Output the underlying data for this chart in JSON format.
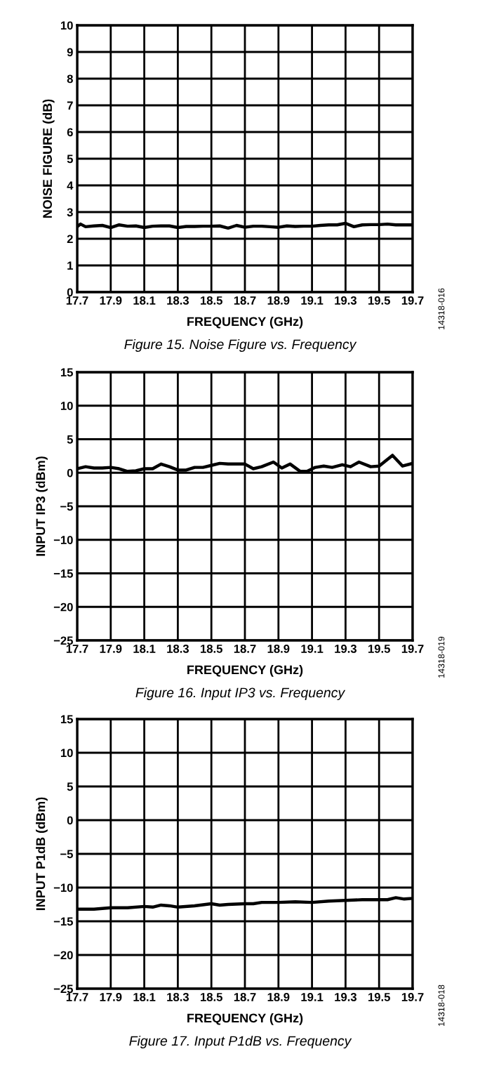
{
  "chart_data": [
    {
      "type": "line",
      "title": "Figure 15. Noise Figure vs. Frequency",
      "xlabel": "FREQUENCY (GHz)",
      "ylabel": "NOISE FIGURE (dB)",
      "annotations": [
        "14318-016"
      ],
      "xlim": [
        17.7,
        19.7
      ],
      "xticks": [
        17.7,
        17.9,
        18.1,
        18.3,
        18.5,
        18.7,
        18.9,
        19.1,
        19.3,
        19.5,
        19.7
      ],
      "ylim": [
        0,
        10
      ],
      "yticks": [
        0,
        1,
        2,
        3,
        4,
        5,
        6,
        7,
        8,
        9,
        10
      ],
      "grid": true,
      "series": [
        {
          "color": "#000000",
          "x": [
            17.7,
            17.72,
            17.75,
            17.8,
            17.85,
            17.9,
            17.95,
            18.0,
            18.05,
            18.1,
            18.15,
            18.2,
            18.25,
            18.3,
            18.35,
            18.4,
            18.45,
            18.5,
            18.55,
            18.6,
            18.65,
            18.7,
            18.75,
            18.8,
            18.85,
            18.9,
            18.95,
            19.0,
            19.05,
            19.1,
            19.15,
            19.2,
            19.25,
            19.3,
            19.35,
            19.4,
            19.45,
            19.5,
            19.55,
            19.6,
            19.65,
            19.7
          ],
          "values": [
            2.45,
            2.55,
            2.45,
            2.48,
            2.5,
            2.42,
            2.52,
            2.47,
            2.48,
            2.42,
            2.47,
            2.48,
            2.48,
            2.42,
            2.46,
            2.46,
            2.47,
            2.47,
            2.48,
            2.4,
            2.5,
            2.43,
            2.47,
            2.47,
            2.45,
            2.43,
            2.48,
            2.46,
            2.47,
            2.47,
            2.5,
            2.52,
            2.52,
            2.58,
            2.45,
            2.52,
            2.53,
            2.53,
            2.55,
            2.52,
            2.52,
            2.52
          ]
        }
      ]
    },
    {
      "type": "line",
      "title": "Figure 16. Input IP3 vs. Frequency",
      "xlabel": "FREQUENCY (GHz)",
      "ylabel": "INPUT IP3 (dBm)",
      "annotations": [
        "14318-019"
      ],
      "xlim": [
        17.7,
        19.7
      ],
      "xticks": [
        17.7,
        17.9,
        18.1,
        18.3,
        18.5,
        18.7,
        18.9,
        19.1,
        19.3,
        19.5,
        19.7
      ],
      "ylim": [
        -25,
        15
      ],
      "yticks": [
        {
          "value": -25,
          "label": "−25"
        },
        {
          "value": -20,
          "label": "−20"
        },
        {
          "value": -15,
          "label": "−15"
        },
        {
          "value": -10,
          "label": "−10"
        },
        {
          "value": -5,
          "label": "−5"
        },
        0,
        5,
        10,
        15
      ],
      "grid": true,
      "series": [
        {
          "color": "#000000",
          "x": [
            17.7,
            17.75,
            17.8,
            17.85,
            17.9,
            17.95,
            18.0,
            18.05,
            18.1,
            18.15,
            18.2,
            18.25,
            18.3,
            18.35,
            18.4,
            18.45,
            18.5,
            18.55,
            18.6,
            18.65,
            18.7,
            18.75,
            18.8,
            18.87,
            18.92,
            18.97,
            19.03,
            19.07,
            19.12,
            19.17,
            19.22,
            19.28,
            19.33,
            19.38,
            19.45,
            19.5,
            19.58,
            19.64,
            19.7
          ],
          "values": [
            0.6,
            0.9,
            0.7,
            0.7,
            0.8,
            0.6,
            0.2,
            0.3,
            0.6,
            0.6,
            1.3,
            0.9,
            0.4,
            0.4,
            0.8,
            0.8,
            1.1,
            1.4,
            1.3,
            1.3,
            1.3,
            0.6,
            0.9,
            1.6,
            0.7,
            1.3,
            0.2,
            0.2,
            0.8,
            1.0,
            0.8,
            1.2,
            0.9,
            1.6,
            0.9,
            1.0,
            2.6,
            1.0,
            1.4
          ]
        }
      ]
    },
    {
      "type": "line",
      "title": "Figure 17. Input P1dB vs. Frequency",
      "xlabel": "FREQUENCY (GHz)",
      "ylabel": "INPUT P1dB (dBm)",
      "annotations": [
        "14318-018"
      ],
      "xlim": [
        17.7,
        19.7
      ],
      "xticks": [
        17.7,
        17.9,
        18.1,
        18.3,
        18.5,
        18.7,
        18.9,
        19.1,
        19.3,
        19.5,
        19.7
      ],
      "ylim": [
        -25,
        15
      ],
      "yticks": [
        {
          "value": -25,
          "label": "−25"
        },
        {
          "value": -20,
          "label": "−20"
        },
        {
          "value": -15,
          "label": "−15"
        },
        {
          "value": -10,
          "label": "−10"
        },
        {
          "value": -5,
          "label": "−5"
        },
        0,
        5,
        10,
        15
      ],
      "grid": true,
      "series": [
        {
          "color": "#000000",
          "x": [
            17.7,
            17.8,
            17.9,
            18.0,
            18.1,
            18.15,
            18.2,
            18.25,
            18.3,
            18.4,
            18.5,
            18.55,
            18.6,
            18.7,
            18.75,
            18.8,
            18.9,
            19.0,
            19.1,
            19.2,
            19.3,
            19.4,
            19.5,
            19.55,
            19.6,
            19.65,
            19.7
          ],
          "values": [
            -13.2,
            -13.2,
            -13.0,
            -13.0,
            -12.8,
            -12.9,
            -12.6,
            -12.7,
            -12.9,
            -12.7,
            -12.4,
            -12.6,
            -12.5,
            -12.4,
            -12.4,
            -12.2,
            -12.2,
            -12.1,
            -12.2,
            -12.0,
            -11.9,
            -11.8,
            -11.8,
            -11.8,
            -11.5,
            -11.7,
            -11.6
          ]
        }
      ]
    }
  ]
}
